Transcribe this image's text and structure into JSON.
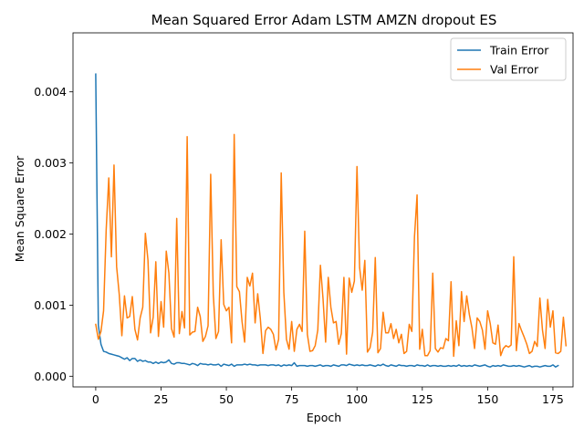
{
  "chart_data": {
    "type": "line",
    "title": "Mean Squared Error  Adam LSTM AMZN dropout ES",
    "xlabel": "Epoch",
    "ylabel": "Mean Square Error",
    "xlim": [
      -8.7,
      182.7
    ],
    "ylim": [
      -0.00015,
      0.00483
    ],
    "xticks": [
      0,
      25,
      50,
      75,
      100,
      125,
      150,
      175
    ],
    "xtick_labels": [
      "0",
      "25",
      "50",
      "75",
      "100",
      "125",
      "150",
      "175"
    ],
    "yticks": [
      0.0,
      0.001,
      0.002,
      0.003,
      0.004
    ],
    "ytick_labels": [
      "0.000",
      "0.001",
      "0.002",
      "0.003",
      "0.004"
    ],
    "grid": false,
    "legend_position": "top-right",
    "series": [
      {
        "name": "Train Error",
        "color": "#1f77b4",
        "values": [
          0.00425,
          0.00072,
          0.00045,
          0.00035,
          0.00034,
          0.00032,
          0.00031,
          0.0003,
          0.00029,
          0.00028,
          0.00026,
          0.00024,
          0.00026,
          0.00022,
          0.00025,
          0.00025,
          0.00021,
          0.00023,
          0.00021,
          0.00022,
          0.0002,
          0.0002,
          0.00018,
          0.0002,
          0.00018,
          0.0002,
          0.00019,
          0.0002,
          0.00023,
          0.00018,
          0.00017,
          0.00019,
          0.00019,
          0.00018,
          0.00018,
          0.00017,
          0.00016,
          0.00018,
          0.00017,
          0.00015,
          0.00018,
          0.00017,
          0.00017,
          0.00016,
          0.00017,
          0.00016,
          0.00016,
          0.00017,
          0.00014,
          0.00017,
          0.00016,
          0.00015,
          0.00017,
          0.00014,
          0.00016,
          0.00016,
          0.00016,
          0.00017,
          0.00016,
          0.00017,
          0.00016,
          0.00016,
          0.00015,
          0.00016,
          0.00016,
          0.00016,
          0.00015,
          0.00016,
          0.00016,
          0.00015,
          0.00016,
          0.00014,
          0.00016,
          0.00015,
          0.00016,
          0.00015,
          0.00019,
          0.00014,
          0.00015,
          0.00015,
          0.00015,
          0.00014,
          0.00015,
          0.00015,
          0.00014,
          0.00015,
          0.00016,
          0.00014,
          0.00015,
          0.00015,
          0.00014,
          0.00016,
          0.00015,
          0.00014,
          0.00016,
          0.00016,
          0.00015,
          0.00017,
          0.00016,
          0.00015,
          0.00016,
          0.00015,
          0.00016,
          0.00015,
          0.00015,
          0.00016,
          0.00015,
          0.00014,
          0.00016,
          0.00015,
          0.00017,
          0.00015,
          0.00014,
          0.00016,
          0.00015,
          0.00014,
          0.00016,
          0.00015,
          0.00015,
          0.00014,
          0.00015,
          0.00015,
          0.00014,
          0.00016,
          0.00015,
          0.00015,
          0.00014,
          0.00016,
          0.00014,
          0.00015,
          0.00015,
          0.00014,
          0.00015,
          0.00014,
          0.00014,
          0.00015,
          0.00014,
          0.00015,
          0.00014,
          0.00016,
          0.00014,
          0.00015,
          0.00014,
          0.00015,
          0.00014,
          0.00016,
          0.00015,
          0.00014,
          0.00015,
          0.00016,
          0.00014,
          0.00013,
          0.00015,
          0.00014,
          0.00015,
          0.00014,
          0.00016,
          0.00015,
          0.00014,
          0.00014,
          0.00015,
          0.00014,
          0.00015,
          0.00014,
          0.00013,
          0.00014,
          0.00015,
          0.00013,
          0.00014,
          0.00014,
          0.00013,
          0.00014,
          0.00015,
          0.00014,
          0.00014,
          0.00016,
          0.00013,
          0.00015
        ]
      },
      {
        "name": "Val Error",
        "color": "#ff7f0e",
        "values": [
          0.00073,
          0.00052,
          0.00063,
          0.00092,
          0.00206,
          0.00279,
          0.00168,
          0.00297,
          0.00154,
          0.00115,
          0.00057,
          0.00113,
          0.00082,
          0.00084,
          0.00112,
          0.00066,
          0.00051,
          0.00082,
          0.00097,
          0.00201,
          0.00163,
          0.00061,
          0.00083,
          0.00161,
          0.00056,
          0.00105,
          0.00069,
          0.00176,
          0.00145,
          0.00067,
          0.00055,
          0.00222,
          0.0006,
          0.00091,
          0.00068,
          0.00337,
          0.00058,
          0.00062,
          0.00063,
          0.00097,
          0.00084,
          0.00049,
          0.00056,
          0.00071,
          0.00284,
          0.00115,
          0.00053,
          0.00063,
          0.00192,
          0.00101,
          0.00092,
          0.00097,
          0.00047,
          0.0034,
          0.00126,
          0.00119,
          0.00077,
          0.00048,
          0.00139,
          0.00127,
          0.00145,
          0.00075,
          0.00116,
          0.00081,
          0.00032,
          0.00064,
          0.00069,
          0.00066,
          0.00059,
          0.00037,
          0.00052,
          0.00286,
          0.00118,
          0.00052,
          0.00038,
          0.00077,
          0.00035,
          0.00066,
          0.00073,
          0.00063,
          0.00204,
          0.00059,
          0.00035,
          0.00036,
          0.00043,
          0.00065,
          0.00156,
          0.00109,
          0.00048,
          0.00139,
          0.00097,
          0.00075,
          0.00077,
          0.00045,
          0.0006,
          0.00139,
          0.00031,
          0.00138,
          0.00118,
          0.00134,
          0.00295,
          0.00153,
          0.00121,
          0.00163,
          0.00034,
          0.0004,
          0.00062,
          0.00167,
          0.00033,
          0.00039,
          0.0009,
          0.00061,
          0.00061,
          0.00074,
          0.00053,
          0.00066,
          0.00047,
          0.00059,
          0.00032,
          0.00035,
          0.00073,
          0.00063,
          0.00196,
          0.00255,
          0.00038,
          0.00066,
          0.00029,
          0.00029,
          0.00036,
          0.00145,
          0.00039,
          0.00034,
          0.0004,
          0.00039,
          0.00053,
          0.0005,
          0.00133,
          0.00028,
          0.00078,
          0.00043,
          0.00119,
          0.00077,
          0.00113,
          0.00087,
          0.00068,
          0.00039,
          0.00082,
          0.00077,
          0.00065,
          0.00038,
          0.00092,
          0.00074,
          0.00047,
          0.00045,
          0.00072,
          0.00029,
          0.00039,
          0.00043,
          0.00041,
          0.00044,
          0.00168,
          0.00036,
          0.00074,
          0.00064,
          0.00055,
          0.00045,
          0.00032,
          0.00035,
          0.00049,
          0.00042,
          0.0011,
          0.00065,
          0.00039,
          0.00108,
          0.00069,
          0.00092,
          0.00033,
          0.00032,
          0.00035,
          0.00083,
          0.00043
        ]
      }
    ]
  }
}
